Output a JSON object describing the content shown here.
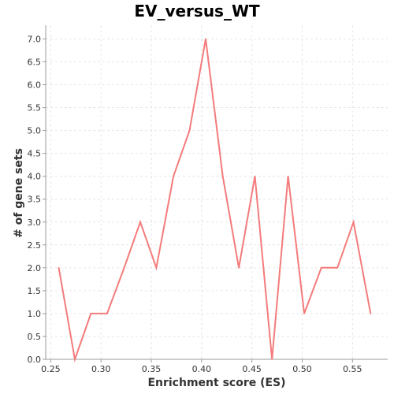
{
  "chart_data": {
    "type": "line",
    "title": "EV_versus_WT",
    "xlabel": "Enrichment score (ES)",
    "ylabel": "# of gene sets",
    "xlim": [
      0.245,
      0.585
    ],
    "ylim": [
      0,
      7.3
    ],
    "x_ticks": [
      "0.25",
      "0.30",
      "0.35",
      "0.40",
      "0.45",
      "0.50",
      "0.55"
    ],
    "y_ticks": [
      "0.0",
      "0.5",
      "1.0",
      "1.5",
      "2.0",
      "2.5",
      "3.0",
      "3.5",
      "4.0",
      "4.5",
      "5.0",
      "5.5",
      "6.0",
      "6.5",
      "7.0"
    ],
    "grid": true,
    "series": [
      {
        "color": "#f47b7b",
        "x": [
          0.258,
          0.274,
          0.29,
          0.306,
          0.323,
          0.339,
          0.355,
          0.372,
          0.388,
          0.404,
          0.421,
          0.437,
          0.453,
          0.47,
          0.486,
          0.502,
          0.519,
          0.535,
          0.551,
          0.568
        ],
        "y": [
          2,
          0,
          1,
          1,
          2,
          3,
          2,
          4,
          5,
          7,
          4,
          2,
          4,
          0,
          4,
          1,
          2,
          2,
          3,
          1
        ]
      }
    ]
  }
}
